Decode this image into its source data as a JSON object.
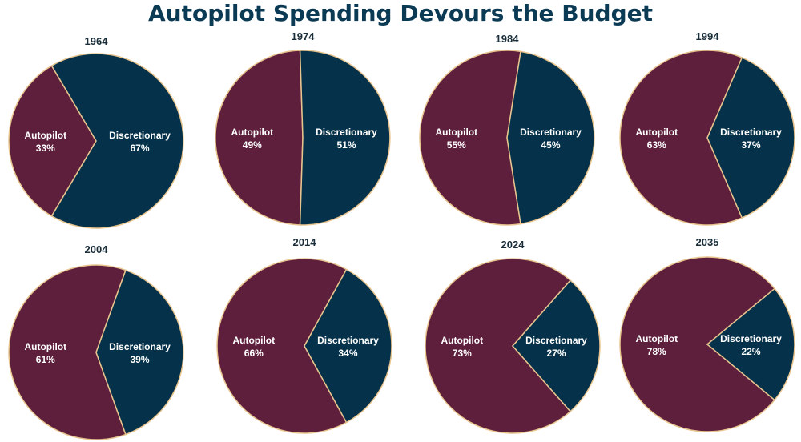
{
  "title": "Autopilot Spending Devours the Budget",
  "colors": {
    "autopilot": "#5e1f3d",
    "discretionary": "#05324a",
    "outline": "#e8c48e",
    "title": "#0b3a55"
  },
  "chart_data": [
    {
      "type": "pie",
      "title": "1964",
      "slices": [
        {
          "name": "Autopilot",
          "value": 33,
          "label": "33%"
        },
        {
          "name": "Discretionary",
          "value": 67,
          "label": "67%"
        }
      ]
    },
    {
      "type": "pie",
      "title": "1974",
      "slices": [
        {
          "name": "Autopilot",
          "value": 49,
          "label": "49%"
        },
        {
          "name": "Discretionary",
          "value": 51,
          "label": "51%"
        }
      ]
    },
    {
      "type": "pie",
      "title": "1984",
      "slices": [
        {
          "name": "Autopilot",
          "value": 55,
          "label": "55%"
        },
        {
          "name": "Discretionary",
          "value": 45,
          "label": "45%"
        }
      ]
    },
    {
      "type": "pie",
      "title": "1994",
      "slices": [
        {
          "name": "Autopilot",
          "value": 63,
          "label": "63%"
        },
        {
          "name": "Discretionary",
          "value": 37,
          "label": "37%"
        }
      ]
    },
    {
      "type": "pie",
      "title": "2004",
      "slices": [
        {
          "name": "Autopilot",
          "value": 61,
          "label": "61%"
        },
        {
          "name": "Discretionary",
          "value": 39,
          "label": "39%"
        }
      ]
    },
    {
      "type": "pie",
      "title": "2014",
      "slices": [
        {
          "name": "Autopilot",
          "value": 66,
          "label": "66%"
        },
        {
          "name": "Discretionary",
          "value": 34,
          "label": "34%"
        }
      ]
    },
    {
      "type": "pie",
      "title": "2024",
      "slices": [
        {
          "name": "Autopilot",
          "value": 73,
          "label": "73%"
        },
        {
          "name": "Discretionary",
          "value": 27,
          "label": "27%"
        }
      ]
    },
    {
      "type": "pie",
      "title": "2035",
      "slices": [
        {
          "name": "Autopilot",
          "value": 78,
          "label": "78%"
        },
        {
          "name": "Discretionary",
          "value": 22,
          "label": "22%"
        }
      ]
    }
  ]
}
